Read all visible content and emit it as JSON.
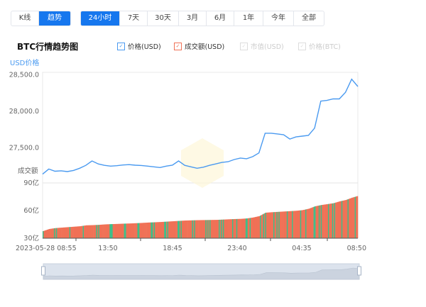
{
  "mode_tabs": [
    {
      "label": "K线",
      "active": false
    },
    {
      "label": "趋势",
      "active": true
    }
  ],
  "range_tabs": [
    {
      "label": "24小时",
      "active": true
    },
    {
      "label": "7天"
    },
    {
      "label": "30天"
    },
    {
      "label": "3月"
    },
    {
      "label": "6月"
    },
    {
      "label": "1年"
    },
    {
      "label": "今年"
    },
    {
      "label": "全部"
    }
  ],
  "chart_data": {
    "type": "line",
    "title": "BTC行情趋势图",
    "legend": [
      {
        "label": "价格(USD)",
        "enabled": true,
        "color": "#4a9af0"
      },
      {
        "label": "成交额(USD)",
        "enabled": true,
        "color": "#f07156"
      },
      {
        "label": "市值(USD)",
        "enabled": false
      },
      {
        "label": "价格(BTC)",
        "enabled": false
      }
    ],
    "price_axis": {
      "label": "USD价格",
      "ticks": [
        "28,500.0",
        "28,000.0",
        "27,500.0"
      ],
      "tick_values": [
        28500,
        28000,
        27500
      ],
      "ylim": [
        27000,
        28550
      ]
    },
    "volume_axis": {
      "label": "成交额",
      "ticks": [
        "90亿",
        "60亿",
        "30亿"
      ],
      "tick_values": [
        90,
        60,
        30
      ],
      "ylim": [
        30,
        90
      ],
      "unit": "亿"
    },
    "x_tick_labels": [
      "2023-05-28 08:55",
      "13:50",
      "18:45",
      "23:40",
      "04:35",
      "08:50"
    ],
    "price": [
      27140,
      27210,
      27180,
      27185,
      27175,
      27190,
      27220,
      27260,
      27320,
      27280,
      27260,
      27250,
      27255,
      27265,
      27270,
      27262,
      27258,
      27250,
      27240,
      27230,
      27250,
      27262,
      27320,
      27260,
      27240,
      27220,
      27235,
      27260,
      27280,
      27300,
      27310,
      27340,
      27360,
      27350,
      27380,
      27430,
      27700,
      27700,
      27690,
      27680,
      27620,
      27650,
      27660,
      27670,
      27770,
      28140,
      28150,
      28170,
      28170,
      28260,
      28440,
      28340
    ],
    "volume": [
      37.7,
      40,
      41,
      41.5,
      42,
      42.5,
      43,
      44,
      44.2,
      44.5,
      45,
      45.3,
      45.5,
      45.8,
      46,
      46.3,
      46.6,
      47,
      47.3,
      47.6,
      48,
      48.4,
      48.8,
      49.2,
      49.4,
      49.6,
      49.7,
      49.8,
      49.9,
      50.2,
      50.5,
      50.8,
      51,
      51.5,
      52.5,
      54,
      57.7,
      58.2,
      58.6,
      59,
      59.4,
      59.8,
      60.5,
      62,
      64.6,
      66,
      67,
      68,
      70,
      71.5,
      74,
      76
    ],
    "accent_colors": {
      "up": "#f07156",
      "down": "#3dbf8a",
      "line": "#4a9af0"
    }
  }
}
